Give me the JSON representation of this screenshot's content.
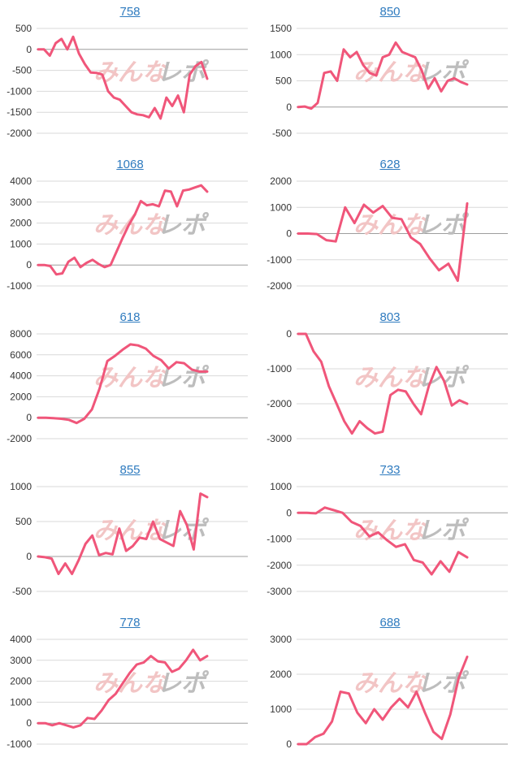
{
  "colors": {
    "line": "#f0567a",
    "title": "#2f7bbf",
    "grid": "#d9d9d9"
  },
  "watermark": {
    "text_pink": "みんな",
    "text_gray": "レポ"
  },
  "chart_data": [
    {
      "type": "line",
      "title": "758",
      "yticks": [
        500,
        0,
        -500,
        -1000,
        -1500,
        -2000
      ],
      "ylim": [
        -2000,
        500
      ],
      "values": [
        0,
        0,
        -150,
        150,
        250,
        0,
        300,
        -100,
        -350,
        -550,
        -560,
        -600,
        -1000,
        -1150,
        -1200,
        -1350,
        -1500,
        -1550,
        -1570,
        -1620,
        -1400,
        -1650,
        -1150,
        -1350,
        -1100,
        -1500,
        -600,
        -400,
        -300,
        -700
      ]
    },
    {
      "type": "line",
      "title": "850",
      "yticks": [
        1500,
        1000,
        500,
        0,
        -500
      ],
      "ylim": [
        -500,
        1500
      ],
      "values": [
        0,
        10,
        -30,
        80,
        650,
        680,
        500,
        1100,
        950,
        1050,
        800,
        650,
        600,
        950,
        1000,
        1230,
        1050,
        1000,
        950,
        700,
        350,
        550,
        300,
        500,
        550,
        480,
        430
      ]
    },
    {
      "type": "line",
      "title": "1068",
      "yticks": [
        4000,
        3000,
        2000,
        1000,
        0,
        -1000
      ],
      "ylim": [
        -1000,
        4000
      ],
      "values": [
        0,
        0,
        -50,
        -450,
        -400,
        150,
        350,
        -100,
        100,
        250,
        50,
        -100,
        0,
        650,
        1300,
        1900,
        2400,
        3050,
        2850,
        2900,
        2800,
        3550,
        3500,
        2800,
        3550,
        3600,
        3700,
        3800,
        3500
      ]
    },
    {
      "type": "line",
      "title": "628",
      "yticks": [
        2000,
        1000,
        0,
        -1000,
        -2000
      ],
      "ylim": [
        -2000,
        2000
      ],
      "values": [
        0,
        0,
        -20,
        -250,
        -300,
        1000,
        400,
        1100,
        800,
        1050,
        600,
        550,
        -150,
        -400,
        -950,
        -1400,
        -1150,
        -1800,
        1150
      ]
    },
    {
      "type": "line",
      "title": "618",
      "yticks": [
        8000,
        6000,
        4000,
        2000,
        0,
        -2000
      ],
      "ylim": [
        -2000,
        8000
      ],
      "values": [
        0,
        0,
        -50,
        -100,
        -200,
        -500,
        -100,
        800,
        2800,
        5400,
        5900,
        6500,
        7000,
        6900,
        6600,
        5900,
        5500,
        4700,
        5300,
        5200,
        4600,
        4400,
        4400
      ]
    },
    {
      "type": "line",
      "title": "803",
      "yticks": [
        0,
        -1000,
        -2000,
        -3000
      ],
      "ylim": [
        -3000,
        0
      ],
      "values": [
        0,
        0,
        -500,
        -800,
        -1500,
        -2000,
        -2500,
        -2850,
        -2500,
        -2700,
        -2850,
        -2800,
        -1750,
        -1600,
        -1650,
        -2000,
        -2300,
        -1500,
        -950,
        -1350,
        -2050,
        -1900,
        -2000
      ]
    },
    {
      "type": "line",
      "title": "855",
      "yticks": [
        1000,
        500,
        0,
        -500
      ],
      "ylim": [
        -500,
        1000
      ],
      "values": [
        0,
        -10,
        -30,
        -250,
        -100,
        -250,
        -50,
        180,
        300,
        20,
        50,
        30,
        400,
        80,
        150,
        270,
        250,
        500,
        250,
        200,
        150,
        650,
        450,
        100,
        900,
        850
      ]
    },
    {
      "type": "line",
      "title": "733",
      "yticks": [
        1000,
        0,
        -1000,
        -2000,
        -3000
      ],
      "ylim": [
        -3000,
        1000
      ],
      "values": [
        0,
        0,
        -20,
        200,
        100,
        0,
        -350,
        -500,
        -900,
        -750,
        -1050,
        -1300,
        -1200,
        -1800,
        -1900,
        -2350,
        -1850,
        -2250,
        -1500,
        -1700
      ]
    },
    {
      "type": "line",
      "title": "778",
      "yticks": [
        4000,
        3000,
        2000,
        1000,
        0,
        -1000
      ],
      "ylim": [
        -1000,
        4000
      ],
      "values": [
        0,
        0,
        -100,
        0,
        -100,
        -200,
        -100,
        250,
        200,
        600,
        1100,
        1400,
        1900,
        2400,
        2800,
        2900,
        3200,
        2950,
        2900,
        2450,
        2600,
        3000,
        3500,
        3000,
        3200
      ]
    },
    {
      "type": "line",
      "title": "688",
      "yticks": [
        3000,
        2000,
        1000,
        0
      ],
      "ylim": [
        0,
        3000
      ],
      "values": [
        0,
        0,
        200,
        300,
        650,
        1500,
        1450,
        900,
        600,
        1000,
        700,
        1050,
        1300,
        1050,
        1500,
        900,
        350,
        150,
        850,
        1900,
        2500
      ]
    }
  ]
}
